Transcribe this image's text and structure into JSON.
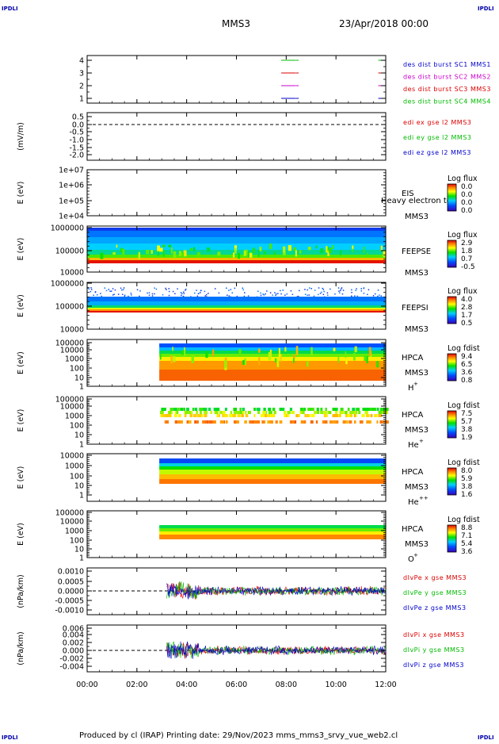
{
  "corner_logo": "IPDLI",
  "header": {
    "spacecraft": "MMS3",
    "date": "23/Apr/2018 00:00"
  },
  "footer": {
    "text": "Produced by cl (IRAP)   Printing date: 29/Nov/2023   mms_mms3_srvy_vue_web2.cl"
  },
  "x_axis": {
    "ticks": [
      "00:00",
      "02:00",
      "04:00",
      "06:00",
      "08:00",
      "10:00",
      "12:00"
    ],
    "range_hours": [
      0,
      12
    ]
  },
  "panels": [
    {
      "id": "burst",
      "ylabel": "",
      "y_ticks": [
        "4",
        "3",
        "2",
        "1"
      ],
      "legend": [
        {
          "text": "des dist burst SC1 MMS1",
          "color": "#0000cc"
        },
        {
          "text": "des dist burst SC2 MMS2",
          "color": "#cc00cc"
        },
        {
          "text": "des dist burst SC3 MMS3",
          "color": "#dd0000"
        },
        {
          "text": "des dist burst SC4 MMS4",
          "color": "#00bb00"
        }
      ],
      "intervals": [
        {
          "sc": 4,
          "color": "#00bb00",
          "segments": [
            [
              7.8,
              8.5
            ],
            [
              11.7,
              12.0
            ]
          ]
        },
        {
          "sc": 3,
          "color": "#dd0000",
          "segments": [
            [
              7.8,
              8.5
            ],
            [
              11.7,
              12.0
            ]
          ]
        },
        {
          "sc": 2,
          "color": "#cc00cc",
          "segments": [
            [
              7.8,
              8.5
            ],
            [
              11.7,
              12.0
            ]
          ]
        },
        {
          "sc": 1,
          "color": "#0000cc",
          "segments": [
            [
              7.8,
              8.5
            ],
            [
              11.7,
              12.0
            ]
          ]
        }
      ]
    },
    {
      "id": "edi",
      "ylabel": "(mV/m)",
      "y_ticks": [
        "0.5",
        "0.0",
        "-0.5",
        "-1.0",
        "-1.5",
        "-2.0"
      ],
      "legend": [
        {
          "text": "edi ex gse l2 MMS3",
          "color": "#dd0000"
        },
        {
          "text": "edi ey gse l2 MMS3",
          "color": "#00bb00"
        },
        {
          "text": "edi ez gse l2 MMS3",
          "color": "#0000cc"
        }
      ]
    },
    {
      "id": "eis",
      "ylabel": "E (eV)",
      "y_ticks": [
        "1e+07",
        "1e+06",
        "1e+05",
        "1e+04"
      ],
      "instrument": "EIS",
      "sc": "MMS3",
      "extra_label": "Heavy electron to",
      "cbar_title": "Log flux",
      "cbar_ticks": [
        "0.0",
        "0.0",
        "0.0",
        "0.0"
      ]
    },
    {
      "id": "feepse",
      "ylabel": "E (eV)",
      "y_ticks": [
        "1000000",
        "100000",
        "10000"
      ],
      "instrument": "FEEPSE",
      "sc": "MMS3",
      "cbar_title": "Log flux",
      "cbar_ticks": [
        "2.9",
        "1.8",
        "0.7",
        "-0.5"
      ]
    },
    {
      "id": "feepsi",
      "ylabel": "E (eV)",
      "y_ticks": [
        "1000000",
        "100000",
        "10000"
      ],
      "instrument": "FEEPSI",
      "sc": "MMS3",
      "cbar_title": "Log flux",
      "cbar_ticks": [
        "4.0",
        "2.8",
        "1.7",
        "0.5"
      ]
    },
    {
      "id": "hpca_h",
      "ylabel": "E (eV)",
      "y_ticks": [
        "100000",
        "10000",
        "1000",
        "100",
        "10",
        "1"
      ],
      "instrument": "HPCA",
      "sc": "MMS3",
      "species": "H",
      "species_sup": "+",
      "cbar_title": "Log fdist",
      "cbar_ticks": [
        "9.4",
        "6.5",
        "3.6",
        "0.8"
      ]
    },
    {
      "id": "hpca_he",
      "ylabel": "E (eV)",
      "y_ticks": [
        "100000",
        "10000",
        "1000",
        "100",
        "10",
        "1"
      ],
      "instrument": "HPCA",
      "sc": "MMS3",
      "species": "He",
      "species_sup": "+",
      "cbar_title": "Log fdist",
      "cbar_ticks": [
        "7.5",
        "5.7",
        "3.8",
        "1.9"
      ]
    },
    {
      "id": "hpca_hepp",
      "ylabel": "E (eV)",
      "y_ticks": [
        "10000",
        "1000",
        "100",
        "10",
        "1"
      ],
      "instrument": "HPCA",
      "sc": "MMS3",
      "species": "He",
      "species_sup": "++",
      "cbar_title": "Log fdist",
      "cbar_ticks": [
        "8.0",
        "5.9",
        "3.8",
        "1.6"
      ]
    },
    {
      "id": "hpca_o",
      "ylabel": "E (eV)",
      "y_ticks": [
        "100000",
        "10000",
        "1000",
        "100",
        "10",
        "1"
      ],
      "instrument": "HPCA",
      "sc": "MMS3",
      "species": "O",
      "species_sup": "+",
      "cbar_title": "Log fdist",
      "cbar_ticks": [
        "8.8",
        "7.1",
        "5.4",
        "3.6"
      ]
    },
    {
      "id": "dpe",
      "ylabel": "(nPa/km)",
      "y_ticks": [
        "0.0010",
        "0.0005",
        "0.0000",
        "-0.0005",
        "-0.0010"
      ],
      "legend": [
        {
          "text": "dIvPe x gse MMS3",
          "color": "#dd0000"
        },
        {
          "text": "dIvPe y gse MMS3",
          "color": "#00bb00"
        },
        {
          "text": "dIvPe z gse MMS3",
          "color": "#0000cc"
        }
      ]
    },
    {
      "id": "dpi",
      "ylabel": "(nPa/km)",
      "y_ticks": [
        "0.006",
        "0.004",
        "0.002",
        "0.000",
        "-0.002",
        "-0.004"
      ],
      "legend": [
        {
          "text": "dIvPi x gse MMS3",
          "color": "#dd0000"
        },
        {
          "text": "dIvPi y gse MMS3",
          "color": "#00bb00"
        },
        {
          "text": "dIvPi z gse MMS3",
          "color": "#0000cc"
        }
      ]
    }
  ],
  "chart_data": {
    "type": "heatmap",
    "title": "MMS3 23/Apr/2018 00:00",
    "x_range_hours": [
      0,
      12
    ],
    "spectrogram_start_hours": {
      "feepse": 0.0,
      "feepsi": 0.0,
      "hpca_h": 2.9,
      "hpca_he": 2.9,
      "hpca_hepp": 2.9,
      "hpca_o": 2.9
    },
    "wave_start_hours": {
      "dpe": 3.2,
      "dpi": 3.2
    }
  }
}
